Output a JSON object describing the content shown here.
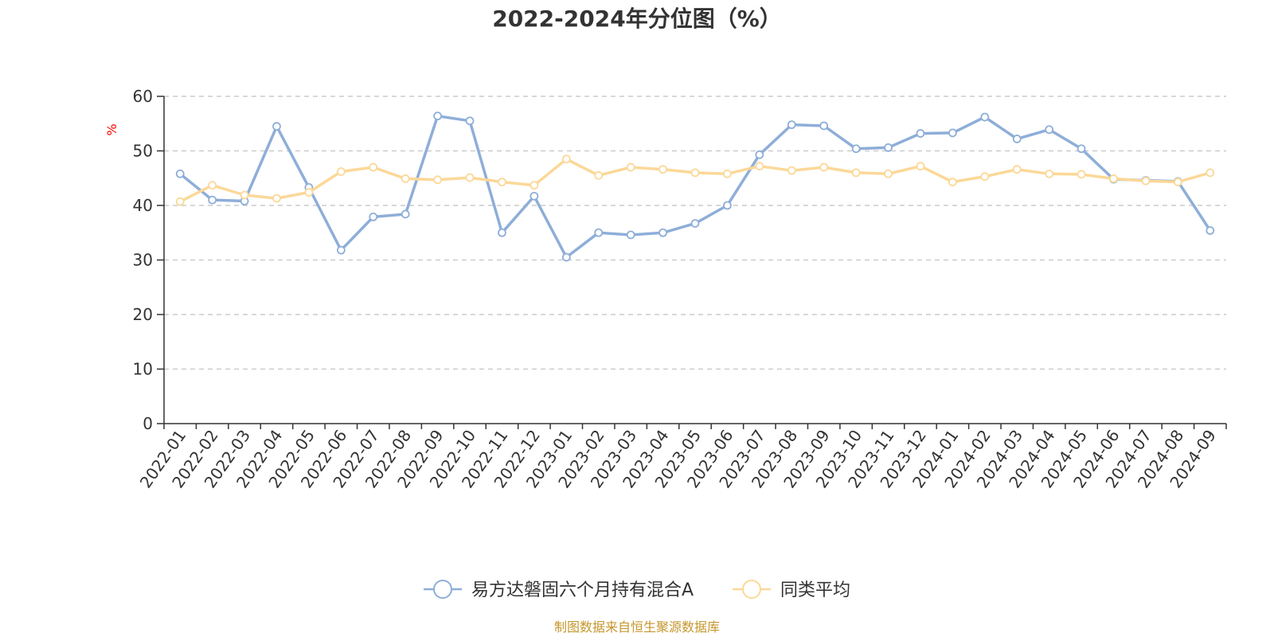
{
  "chart_data": {
    "type": "line",
    "title": "2022-2024年分位图（%）",
    "ylabel": "%",
    "ylim": [
      0,
      60
    ],
    "yticks": [
      0,
      10,
      20,
      30,
      40,
      50,
      60
    ],
    "grid": true,
    "legend_position": "bottom-center",
    "categories": [
      "2022-01",
      "2022-02",
      "2022-03",
      "2022-04",
      "2022-05",
      "2022-06",
      "2022-07",
      "2022-08",
      "2022-09",
      "2022-10",
      "2022-11",
      "2022-12",
      "2023-01",
      "2023-02",
      "2023-03",
      "2023-04",
      "2023-05",
      "2023-06",
      "2023-07",
      "2023-08",
      "2023-09",
      "2023-10",
      "2023-11",
      "2023-12",
      "2024-01",
      "2024-02",
      "2024-03",
      "2024-04",
      "2024-05",
      "2024-06",
      "2024-07",
      "2024-08",
      "2024-09"
    ],
    "series": [
      {
        "name": "易方达磐固六个月持有混合A",
        "color": "#8eaed8",
        "values": [
          45.8,
          41.0,
          40.8,
          54.5,
          43.3,
          31.8,
          37.9,
          38.4,
          56.4,
          55.5,
          35.0,
          41.7,
          30.5,
          35.0,
          34.6,
          35.0,
          36.7,
          40.0,
          49.3,
          54.8,
          54.6,
          50.4,
          50.6,
          53.2,
          53.3,
          56.2,
          52.2,
          53.9,
          50.4,
          44.8,
          44.6,
          44.4,
          35.4
        ]
      },
      {
        "name": "同类平均",
        "color": "#fbd898",
        "values": [
          40.7,
          43.7,
          41.9,
          41.3,
          42.4,
          46.2,
          47.0,
          44.9,
          44.7,
          45.1,
          44.3,
          43.7,
          48.5,
          45.5,
          47.0,
          46.6,
          46.0,
          45.8,
          47.2,
          46.4,
          47.0,
          46.0,
          45.8,
          47.2,
          44.3,
          45.3,
          46.6,
          45.8,
          45.7,
          44.9,
          44.5,
          44.3,
          46.0
        ]
      }
    ]
  },
  "colors": {
    "axis": "#333333",
    "grid": "#cccccc",
    "unit": "#ff0000",
    "source": "#c5962c"
  },
  "source": "制图数据来自恒生聚源数据库"
}
